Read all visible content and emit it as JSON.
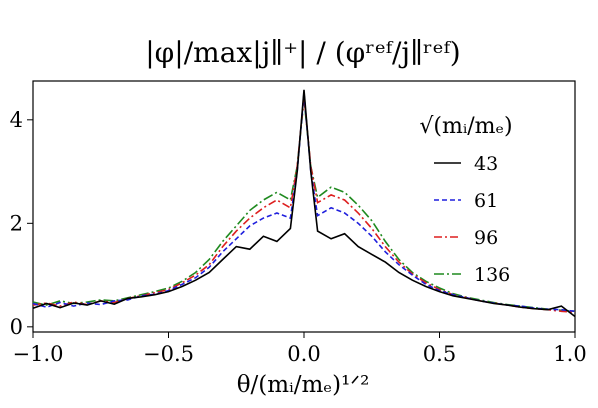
{
  "chart_data": {
    "type": "line",
    "title": "|φ|/max|j∥⁺| / (φʳᵉᶠ/j∥ʳᵉᶠ)",
    "xlabel": "θ/(mᵢ/mₑ)¹ᐟ²",
    "ylabel": "",
    "xlim": [
      -1.0,
      1.0
    ],
    "ylim": [
      -0.1,
      4.75
    ],
    "xticks": [
      "−1.0",
      "−0.5",
      "0.0",
      "0.5",
      "1.0"
    ],
    "xtick_values": [
      -1.0,
      -0.5,
      0.0,
      0.5,
      1.0
    ],
    "yticks": [
      "0",
      "2",
      "4"
    ],
    "ytick_values": [
      0,
      2,
      4
    ],
    "grid": false,
    "legend": {
      "title": "√(mᵢ/mₑ)",
      "placement": "right"
    },
    "x": [
      -1.0,
      -0.95,
      -0.9,
      -0.85,
      -0.8,
      -0.75,
      -0.7,
      -0.65,
      -0.6,
      -0.55,
      -0.5,
      -0.45,
      -0.4,
      -0.35,
      -0.3,
      -0.25,
      -0.2,
      -0.15,
      -0.1,
      -0.05,
      -0.025,
      0.0,
      0.025,
      0.05,
      0.1,
      0.15,
      0.2,
      0.25,
      0.3,
      0.35,
      0.4,
      0.45,
      0.5,
      0.55,
      0.6,
      0.65,
      0.7,
      0.75,
      0.8,
      0.85,
      0.9,
      0.95,
      1.0
    ],
    "series": [
      {
        "name": "43",
        "color": "#000000",
        "dash": "solid",
        "values": [
          0.36,
          0.45,
          0.37,
          0.46,
          0.42,
          0.5,
          0.44,
          0.55,
          0.58,
          0.62,
          0.68,
          0.78,
          0.9,
          1.05,
          1.3,
          1.55,
          1.5,
          1.75,
          1.65,
          1.9,
          3.0,
          4.58,
          3.0,
          1.85,
          1.7,
          1.8,
          1.55,
          1.4,
          1.25,
          1.05,
          0.9,
          0.78,
          0.68,
          0.6,
          0.55,
          0.5,
          0.45,
          0.42,
          0.38,
          0.35,
          0.33,
          0.4,
          0.2
        ]
      },
      {
        "name": "61",
        "color": "#1f1fdd",
        "dash": "5,3",
        "values": [
          0.45,
          0.38,
          0.47,
          0.4,
          0.46,
          0.43,
          0.5,
          0.52,
          0.6,
          0.63,
          0.7,
          0.82,
          0.95,
          1.15,
          1.45,
          1.7,
          1.95,
          2.1,
          2.2,
          2.1,
          3.0,
          4.52,
          3.0,
          2.15,
          2.3,
          2.2,
          2.0,
          1.75,
          1.45,
          1.2,
          1.0,
          0.82,
          0.7,
          0.62,
          0.56,
          0.5,
          0.46,
          0.42,
          0.4,
          0.36,
          0.34,
          0.33,
          0.3
        ]
      },
      {
        "name": "96",
        "color": "#dd1f1f",
        "dash": "8,3,2,3",
        "values": [
          0.42,
          0.46,
          0.4,
          0.48,
          0.43,
          0.5,
          0.47,
          0.55,
          0.6,
          0.66,
          0.72,
          0.85,
          1.0,
          1.2,
          1.55,
          1.85,
          2.1,
          2.3,
          2.45,
          2.3,
          3.1,
          4.45,
          3.1,
          2.4,
          2.55,
          2.45,
          2.2,
          1.9,
          1.55,
          1.25,
          1.02,
          0.85,
          0.72,
          0.62,
          0.56,
          0.5,
          0.46,
          0.42,
          0.38,
          0.35,
          0.33,
          0.3,
          0.28
        ]
      },
      {
        "name": "136",
        "color": "#1f8a1f",
        "dash": "10,3,2,3",
        "values": [
          0.48,
          0.42,
          0.5,
          0.45,
          0.48,
          0.52,
          0.5,
          0.56,
          0.62,
          0.68,
          0.75,
          0.88,
          1.05,
          1.3,
          1.65,
          1.95,
          2.25,
          2.45,
          2.6,
          2.45,
          3.1,
          4.4,
          3.1,
          2.5,
          2.7,
          2.6,
          2.35,
          2.05,
          1.65,
          1.3,
          1.05,
          0.88,
          0.75,
          0.64,
          0.57,
          0.52,
          0.47,
          0.43,
          0.4,
          0.37,
          0.34,
          0.32,
          0.3
        ]
      }
    ]
  }
}
